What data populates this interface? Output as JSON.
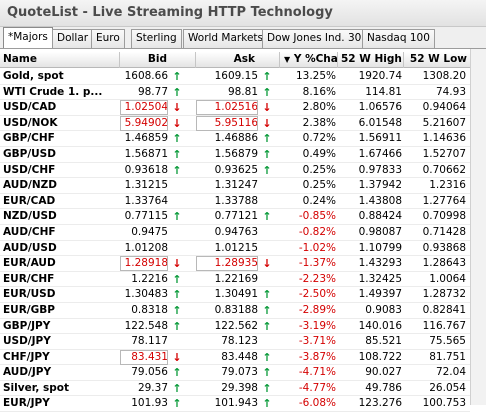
{
  "app": {
    "title": "QuoteList - Live Streaming HTTP Technology"
  },
  "tabs": [
    {
      "label": "*Majors",
      "active": true
    },
    {
      "label": "Dollar"
    },
    {
      "label": "Euro"
    },
    {
      "label": "Sterling"
    },
    {
      "label": "World Markets"
    },
    {
      "label": "Dow Jones Ind. 30"
    },
    {
      "label": "Nasdaq 100"
    }
  ],
  "columns": {
    "name": "Name",
    "bid": "Bid",
    "ask": "Ask",
    "change": "Y %Cha...",
    "sort_indicator": "▼",
    "high": "52 W High",
    "low": "52 W Low"
  },
  "colors": {
    "up": "#0a9a3a",
    "down": "#d40000"
  },
  "rows": [
    {
      "name": "Gold, spot",
      "bid": "1608.66",
      "bid_dir": "up",
      "ask": "1609.15",
      "ask_dir": "up",
      "change": "13.25%",
      "high": "1920.74",
      "low": "1308.20"
    },
    {
      "name": "WTI Crude 1. p...",
      "bid": "98.77",
      "bid_dir": "up",
      "ask": "98.81",
      "ask_dir": "up",
      "change": "8.16%",
      "high": "114.81",
      "low": "74.93"
    },
    {
      "name": "USD/CAD",
      "bid": "1.02504",
      "bid_dir": "down",
      "ask": "1.02516",
      "ask_dir": "down",
      "change": "2.80%",
      "high": "1.06576",
      "low": "0.94064"
    },
    {
      "name": "USD/NOK",
      "bid": "5.94902",
      "bid_dir": "down",
      "ask": "5.95116",
      "ask_dir": "down",
      "change": "2.38%",
      "high": "6.01548",
      "low": "5.21607"
    },
    {
      "name": "GBP/CHF",
      "bid": "1.46859",
      "bid_dir": "up",
      "ask": "1.46886",
      "ask_dir": "up",
      "change": "0.72%",
      "high": "1.56911",
      "low": "1.14636"
    },
    {
      "name": "GBP/USD",
      "bid": "1.56871",
      "bid_dir": "up",
      "ask": "1.56879",
      "ask_dir": "up",
      "change": "0.49%",
      "high": "1.67466",
      "low": "1.52707"
    },
    {
      "name": "USD/CHF",
      "bid": "0.93618",
      "bid_dir": "up",
      "ask": "0.93625",
      "ask_dir": "up",
      "change": "0.25%",
      "high": "0.97833",
      "low": "0.70662"
    },
    {
      "name": "AUD/NZD",
      "bid": "1.31215",
      "bid_dir": "",
      "ask": "1.31247",
      "ask_dir": "",
      "change": "0.25%",
      "high": "1.37942",
      "low": "1.2316"
    },
    {
      "name": "EUR/CAD",
      "bid": "1.33764",
      "bid_dir": "",
      "ask": "1.33788",
      "ask_dir": "",
      "change": "0.24%",
      "high": "1.43808",
      "low": "1.27764"
    },
    {
      "name": "NZD/USD",
      "bid": "0.77115",
      "bid_dir": "up",
      "ask": "0.77121",
      "ask_dir": "up",
      "change": "-0.85%",
      "high": "0.88424",
      "low": "0.70998"
    },
    {
      "name": "AUD/CHF",
      "bid": "0.9475",
      "bid_dir": "",
      "ask": "0.94763",
      "ask_dir": "",
      "change": "-0.82%",
      "high": "0.98087",
      "low": "0.71428"
    },
    {
      "name": "AUD/USD",
      "bid": "1.01208",
      "bid_dir": "",
      "ask": "1.01215",
      "ask_dir": "",
      "change": "-1.02%",
      "high": "1.10799",
      "low": "0.93868"
    },
    {
      "name": "EUR/AUD",
      "bid": "1.28918",
      "bid_dir": "down",
      "ask": "1.28935",
      "ask_dir": "down",
      "change": "-1.37%",
      "high": "1.43293",
      "low": "1.28643"
    },
    {
      "name": "EUR/CHF",
      "bid": "1.2216",
      "bid_dir": "up",
      "ask": "1.22169",
      "ask_dir": "",
      "change": "-2.23%",
      "high": "1.32425",
      "low": "1.0064"
    },
    {
      "name": "EUR/USD",
      "bid": "1.30483",
      "bid_dir": "up",
      "ask": "1.30491",
      "ask_dir": "up",
      "change": "-2.50%",
      "high": "1.49397",
      "low": "1.28732"
    },
    {
      "name": "EUR/GBP",
      "bid": "0.8318",
      "bid_dir": "up",
      "ask": "0.83188",
      "ask_dir": "up",
      "change": "-2.89%",
      "high": "0.9083",
      "low": "0.82841"
    },
    {
      "name": "GBP/JPY",
      "bid": "122.548",
      "bid_dir": "up",
      "ask": "122.562",
      "ask_dir": "up",
      "change": "-3.19%",
      "high": "140.016",
      "low": "116.767"
    },
    {
      "name": "USD/JPY",
      "bid": "78.117",
      "bid_dir": "",
      "ask": "78.123",
      "ask_dir": "",
      "change": "-3.71%",
      "high": "85.521",
      "low": "75.565"
    },
    {
      "name": "CHF/JPY",
      "bid": "83.431",
      "bid_dir": "down",
      "ask": "83.448",
      "ask_dir": "up",
      "change": "-3.87%",
      "high": "108.722",
      "low": "81.751"
    },
    {
      "name": "AUD/JPY",
      "bid": "79.056",
      "bid_dir": "up",
      "ask": "79.073",
      "ask_dir": "up",
      "change": "-4.71%",
      "high": "90.027",
      "low": "72.04"
    },
    {
      "name": "Silver, spot",
      "bid": "29.37",
      "bid_dir": "up",
      "ask": "29.398",
      "ask_dir": "up",
      "change": "-4.77%",
      "high": "49.786",
      "low": "26.054"
    },
    {
      "name": "EUR/JPY",
      "bid": "101.93",
      "bid_dir": "up",
      "ask": "101.943",
      "ask_dir": "up",
      "change": "-6.08%",
      "high": "123.276",
      "low": "100.753"
    }
  ]
}
